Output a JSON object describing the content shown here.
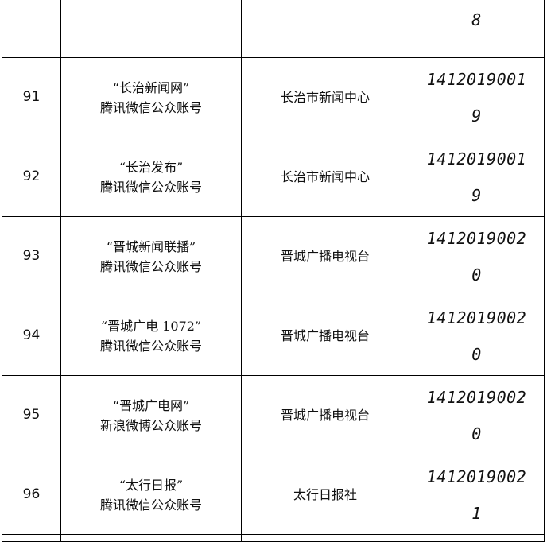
{
  "top_row": {
    "code_tail": "8"
  },
  "rows": [
    {
      "no": "91",
      "name": "“长治新闻网”",
      "platform": "腾讯微信公众账号",
      "org": "长治市新闻中心",
      "code_main": "1412019001",
      "code_tail": "9"
    },
    {
      "no": "92",
      "name": "“长治发布”",
      "platform": "腾讯微信公众账号",
      "org": "长治市新闻中心",
      "code_main": "1412019001",
      "code_tail": "9"
    },
    {
      "no": "93",
      "name": "“晋城新闻联播”",
      "platform": "腾讯微信公众账号",
      "org": "晋城广播电视台",
      "code_main": "1412019002",
      "code_tail": "0"
    },
    {
      "no": "94",
      "name": "“晋城广电 1072”",
      "platform": "腾讯微信公众账号",
      "org": "晋城广播电视台",
      "code_main": "1412019002",
      "code_tail": "0"
    },
    {
      "no": "95",
      "name": "“晋城广电网”",
      "platform": "新浪微博公众账号",
      "org": "晋城广播电视台",
      "code_main": "1412019002",
      "code_tail": "0"
    },
    {
      "no": "96",
      "name": "“太行日报”",
      "platform": "腾讯微信公众账号",
      "org": "太行日报社",
      "code_main": "1412019002",
      "code_tail": "1"
    }
  ]
}
